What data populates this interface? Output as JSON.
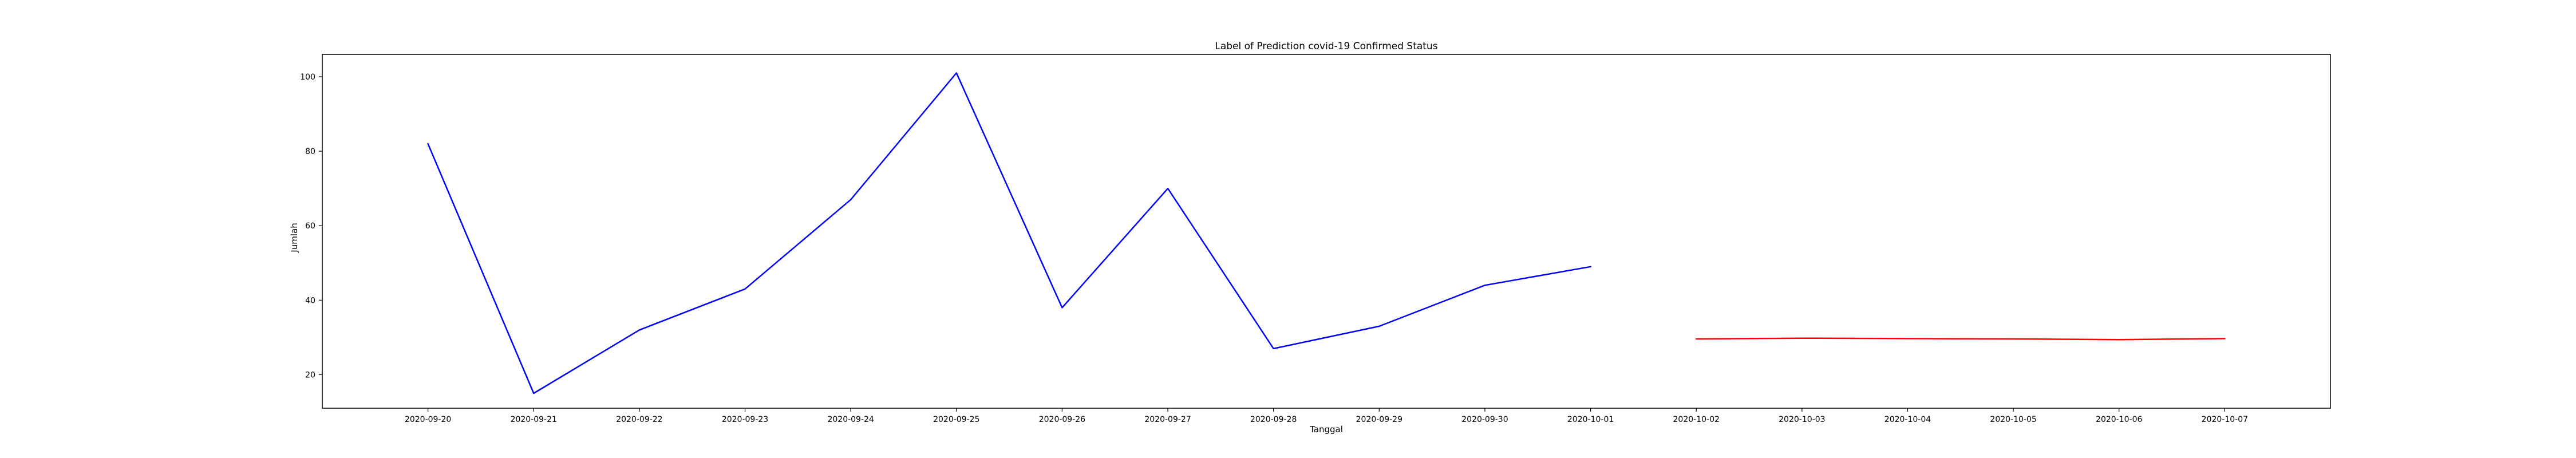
{
  "chart_data": {
    "type": "line",
    "title": "Label of Prediction covid-19 Confirmed Status",
    "xlabel": "Tanggal",
    "ylabel": "Jumlah",
    "x_ticks": [
      "2020-09-20",
      "2020-09-21",
      "2020-09-22",
      "2020-09-23",
      "2020-09-24",
      "2020-09-25",
      "2020-09-26",
      "2020-09-27",
      "2020-09-28",
      "2020-09-29",
      "2020-09-30",
      "2020-10-01",
      "2020-10-02",
      "2020-10-03",
      "2020-10-04",
      "2020-10-05",
      "2020-10-06",
      "2020-10-07"
    ],
    "y_ticks": [
      20,
      40,
      60,
      80,
      100
    ],
    "xlim": [
      "2020-09-19",
      "2020-10-08"
    ],
    "ylim": [
      11,
      106
    ],
    "grid": false,
    "series": [
      {
        "color": "#0000ff",
        "x": [
          "2020-09-20",
          "2020-09-21",
          "2020-09-22",
          "2020-09-23",
          "2020-09-24",
          "2020-09-25",
          "2020-09-26",
          "2020-09-27",
          "2020-09-28",
          "2020-09-29",
          "2020-09-30",
          "2020-10-01"
        ],
        "values": [
          82,
          15,
          32,
          43,
          67,
          101,
          38,
          70,
          27,
          33,
          44,
          49
        ]
      },
      {
        "color": "#ff0000",
        "x": [
          "2020-10-02",
          "2020-10-03",
          "2020-10-04",
          "2020-10-05",
          "2020-10-06",
          "2020-10-07"
        ],
        "values": [
          29.6,
          29.8,
          29.7,
          29.6,
          29.4,
          29.7
        ]
      }
    ]
  }
}
